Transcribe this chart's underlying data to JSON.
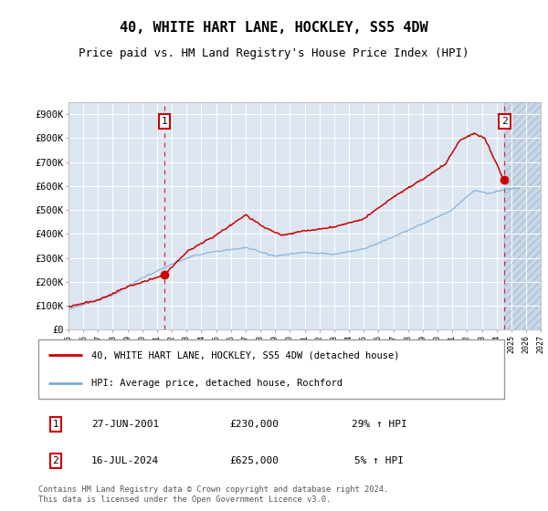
{
  "title": "40, WHITE HART LANE, HOCKLEY, SS5 4DW",
  "subtitle": "Price paid vs. HM Land Registry's House Price Index (HPI)",
  "legend_line1": "40, WHITE HART LANE, HOCKLEY, SS5 4DW (detached house)",
  "legend_line2": "HPI: Average price, detached house, Rochford",
  "annotation1_date": "27-JUN-2001",
  "annotation1_price": "£230,000",
  "annotation1_hpi": "29% ↑ HPI",
  "annotation2_date": "16-JUL-2024",
  "annotation2_price": "£625,000",
  "annotation2_hpi": "5% ↑ HPI",
  "footer": "Contains HM Land Registry data © Crown copyright and database right 2024.\nThis data is licensed under the Open Government Licence v3.0.",
  "red_color": "#cc0000",
  "blue_color": "#7aadd4",
  "plot_bg_color": "#dce6f1",
  "future_bg_color": "#c8d8e8",
  "ylim": [
    0,
    950000
  ],
  "yticks": [
    0,
    100000,
    200000,
    300000,
    400000,
    500000,
    600000,
    700000,
    800000,
    900000
  ],
  "ytick_labels": [
    "£0",
    "£100K",
    "£200K",
    "£300K",
    "£400K",
    "£500K",
    "£600K",
    "£700K",
    "£800K",
    "£900K"
  ],
  "year_start": 1995,
  "year_end": 2027,
  "sale1_year": 2001.49,
  "sale1_price": 230000,
  "sale2_year": 2024.54,
  "sale2_price": 625000,
  "title_fontsize": 11,
  "subtitle_fontsize": 9
}
